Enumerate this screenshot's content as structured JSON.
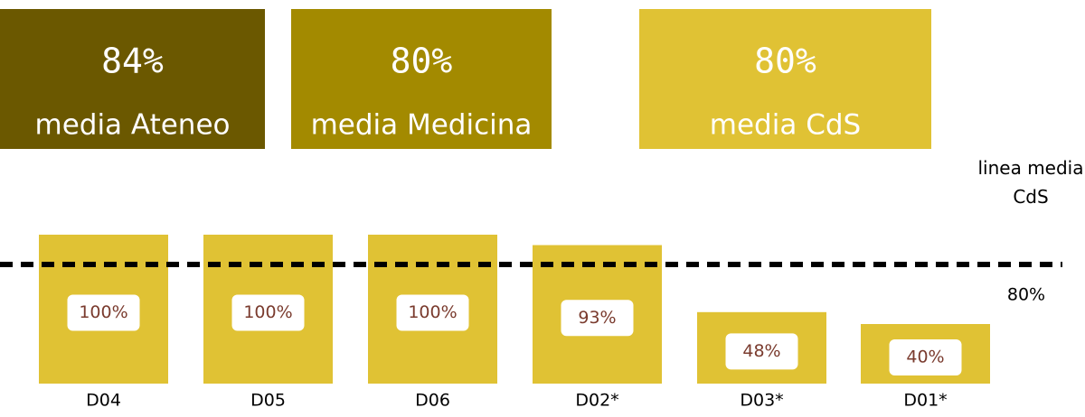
{
  "kpis": [
    {
      "value": "84%",
      "caption": "media Ateneo",
      "color": "#6b5800"
    },
    {
      "value": "80%",
      "caption": "media Medicina",
      "color": "#a38a00"
    },
    {
      "value": "80%",
      "caption": "media CdS",
      "color": "#e0c234"
    }
  ],
  "chart_data": {
    "type": "bar",
    "categories": [
      "D04",
      "D05",
      "D06",
      "D02*",
      "D03*",
      "D01*"
    ],
    "values": [
      100,
      100,
      100,
      93,
      48,
      40
    ],
    "value_labels": [
      "100%",
      "100%",
      "100%",
      "93%",
      "48%",
      "40%"
    ],
    "color": "#e0c234",
    "ylim": [
      0,
      100
    ],
    "reference_line": {
      "value": 80,
      "label": "80%",
      "name": "linea media CdS"
    }
  }
}
